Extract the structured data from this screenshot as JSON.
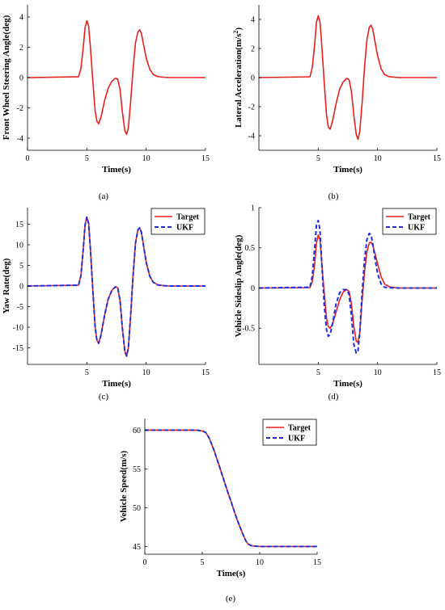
{
  "chart_data": [
    {
      "id": "a",
      "type": "line",
      "caption": "(a)",
      "title": "",
      "xlabel": "Time(s)",
      "ylabel": "Front Wheel Steering Angle(deg)",
      "xlim": [
        0,
        15
      ],
      "ylim": [
        -4.8,
        4.8
      ],
      "xticks": [
        0,
        5,
        10,
        15
      ],
      "yticks": [
        -4,
        -2,
        0,
        2,
        4
      ],
      "legend": null,
      "series": [
        {
          "color": "#e8201c",
          "dash": "solid",
          "x": [
            0,
            4.3,
            4.5,
            4.7,
            4.85,
            5.0,
            5.15,
            5.3,
            5.5,
            5.7,
            5.85,
            6.0,
            6.2,
            6.5,
            6.8,
            7.1,
            7.4,
            7.6,
            7.8,
            8.0,
            8.2,
            8.35,
            8.5,
            8.7,
            8.9,
            9.1,
            9.3,
            9.45,
            9.6,
            9.8,
            10.0,
            10.3,
            10.6,
            11.0,
            11.5,
            12.0,
            15
          ],
          "y": [
            0,
            0.05,
            0.6,
            2.0,
            3.3,
            3.75,
            3.4,
            2.0,
            -0.2,
            -2.2,
            -2.9,
            -3.05,
            -2.6,
            -1.5,
            -0.7,
            -0.25,
            -0.05,
            -0.1,
            -0.8,
            -2.3,
            -3.5,
            -3.75,
            -3.3,
            -1.5,
            0.6,
            2.3,
            3.0,
            3.15,
            2.9,
            2.1,
            1.3,
            0.55,
            0.2,
            0.06,
            0.02,
            0,
            0
          ]
        }
      ]
    },
    {
      "id": "b",
      "type": "line",
      "caption": "(b)",
      "title": "",
      "xlabel": "Time(s)",
      "ylabel": "Lateral Acceleration(m/s",
      "ylabel_sup": "2",
      "ylabel_end": ")",
      "xlim": [
        0,
        15
      ],
      "ylim": [
        -5,
        5
      ],
      "xticks": [
        5,
        10,
        15
      ],
      "yticks": [
        -4,
        -2,
        0,
        2,
        4
      ],
      "legend": null,
      "series": [
        {
          "color": "#e8201c",
          "dash": "solid",
          "x": [
            0,
            4.3,
            4.5,
            4.7,
            4.85,
            5.0,
            5.15,
            5.3,
            5.5,
            5.7,
            5.85,
            6.0,
            6.2,
            6.5,
            6.8,
            7.1,
            7.4,
            7.6,
            7.8,
            8.0,
            8.2,
            8.35,
            8.5,
            8.7,
            8.9,
            9.1,
            9.3,
            9.45,
            9.6,
            9.8,
            10.0,
            10.3,
            10.6,
            11.0,
            11.5,
            12.0,
            15
          ],
          "y": [
            0,
            0.05,
            0.7,
            2.3,
            3.8,
            4.25,
            3.8,
            2.2,
            -0.3,
            -2.6,
            -3.4,
            -3.55,
            -3.0,
            -1.8,
            -0.8,
            -0.3,
            -0.05,
            -0.15,
            -1.0,
            -2.6,
            -3.9,
            -4.25,
            -3.7,
            -1.7,
            0.7,
            2.6,
            3.45,
            3.6,
            3.3,
            2.4,
            1.5,
            0.6,
            0.2,
            0.06,
            0.02,
            0,
            0
          ]
        }
      ]
    },
    {
      "id": "c",
      "type": "line",
      "caption": "(c)",
      "title": "",
      "xlabel": "Time(s)",
      "ylabel": "Yaw Rate(deg)",
      "xlim": [
        0,
        15
      ],
      "ylim": [
        -19,
        19
      ],
      "xticks": [
        5,
        10,
        15
      ],
      "yticks": [
        -15,
        -10,
        -5,
        0,
        5,
        10,
        15
      ],
      "legend": [
        "Target",
        "UKF"
      ],
      "series": [
        {
          "name": "Target",
          "color": "#e8201c",
          "dash": "solid",
          "x": [
            0,
            4.3,
            4.5,
            4.7,
            4.85,
            5.0,
            5.15,
            5.3,
            5.5,
            5.7,
            5.85,
            6.0,
            6.2,
            6.5,
            6.8,
            7.1,
            7.4,
            7.6,
            7.8,
            8.0,
            8.2,
            8.35,
            8.5,
            8.7,
            8.9,
            9.1,
            9.3,
            9.45,
            9.6,
            9.8,
            10.0,
            10.3,
            10.6,
            11.0,
            11.5,
            12.0,
            15
          ],
          "y": [
            0,
            0.2,
            2.5,
            9.0,
            14.8,
            16.7,
            15.2,
            9.0,
            -0.8,
            -10.0,
            -13.2,
            -13.9,
            -11.8,
            -7.0,
            -3.2,
            -1.1,
            -0.2,
            -0.4,
            -3.6,
            -10.4,
            -15.8,
            -17.0,
            -15.0,
            -6.8,
            2.7,
            10.4,
            13.6,
            14.1,
            13.0,
            9.4,
            5.8,
            2.4,
            0.9,
            0.25,
            0.08,
            0,
            0
          ]
        },
        {
          "name": "UKF",
          "color": "#1f2de0",
          "dash": "dashed",
          "x": [
            0,
            4.3,
            4.5,
            4.7,
            4.85,
            5.0,
            5.15,
            5.3,
            5.5,
            5.7,
            5.85,
            6.0,
            6.2,
            6.5,
            6.8,
            7.1,
            7.4,
            7.6,
            7.8,
            8.0,
            8.2,
            8.35,
            8.5,
            8.7,
            8.9,
            9.1,
            9.3,
            9.45,
            9.6,
            9.8,
            10.0,
            10.3,
            10.6,
            11.0,
            11.5,
            12.0,
            15
          ],
          "y": [
            0,
            0.2,
            2.5,
            9.0,
            14.8,
            16.7,
            15.2,
            9.0,
            -0.8,
            -10.0,
            -13.2,
            -13.9,
            -11.8,
            -7.0,
            -3.2,
            -1.1,
            -0.2,
            -0.4,
            -3.6,
            -10.4,
            -15.8,
            -17.0,
            -15.0,
            -6.8,
            2.7,
            10.4,
            13.6,
            14.1,
            13.0,
            9.4,
            5.8,
            2.4,
            0.9,
            0.25,
            0.08,
            0,
            0
          ]
        }
      ]
    },
    {
      "id": "d",
      "type": "line",
      "caption": "(d)",
      "title": "",
      "xlabel": "Time(s)",
      "ylabel": "Vehicle Sideslip Angle(deg)",
      "xlim": [
        0,
        15
      ],
      "ylim": [
        -0.95,
        1.0
      ],
      "xticks": [
        5,
        10,
        15
      ],
      "yticks": [
        -0.5,
        0,
        0.5,
        1
      ],
      "legend": [
        "Target",
        "UKF"
      ],
      "series": [
        {
          "name": "Target",
          "color": "#e8201c",
          "dash": "solid",
          "x": [
            0,
            4.3,
            4.5,
            4.7,
            4.85,
            5.0,
            5.15,
            5.3,
            5.5,
            5.7,
            5.85,
            6.0,
            6.2,
            6.5,
            6.8,
            7.1,
            7.4,
            7.6,
            7.8,
            8.0,
            8.2,
            8.35,
            8.5,
            8.7,
            8.9,
            9.1,
            9.3,
            9.45,
            9.6,
            9.8,
            10.0,
            10.3,
            10.6,
            11.0,
            11.5,
            12.0,
            15
          ],
          "y": [
            0,
            0.005,
            0.08,
            0.3,
            0.56,
            0.66,
            0.6,
            0.3,
            -0.05,
            -0.38,
            -0.48,
            -0.5,
            -0.45,
            -0.3,
            -0.15,
            -0.05,
            -0.02,
            -0.04,
            -0.2,
            -0.48,
            -0.66,
            -0.68,
            -0.55,
            -0.15,
            0.2,
            0.45,
            0.56,
            0.57,
            0.53,
            0.42,
            0.3,
            0.14,
            0.05,
            0.015,
            0.005,
            0,
            0
          ]
        },
        {
          "name": "UKF",
          "color": "#1f2de0",
          "dash": "dashed",
          "x": [
            0,
            4.3,
            4.5,
            4.7,
            4.85,
            5.0,
            5.15,
            5.3,
            5.5,
            5.7,
            5.85,
            6.0,
            6.2,
            6.5,
            6.8,
            7.1,
            7.4,
            7.6,
            7.8,
            8.0,
            8.2,
            8.35,
            8.5,
            8.7,
            8.9,
            9.1,
            9.3,
            9.45,
            9.6,
            9.8,
            10.0,
            10.3,
            10.6,
            11.0,
            11.5,
            12.0,
            15
          ],
          "y": [
            0,
            0.01,
            0.15,
            0.5,
            0.78,
            0.84,
            0.72,
            0.3,
            -0.2,
            -0.52,
            -0.6,
            -0.58,
            -0.45,
            -0.2,
            -0.06,
            -0.02,
            -0.02,
            -0.08,
            -0.35,
            -0.7,
            -0.81,
            -0.78,
            -0.55,
            -0.05,
            0.35,
            0.6,
            0.68,
            0.66,
            0.55,
            0.35,
            0.18,
            0.05,
            0.01,
            0.003,
            0.001,
            0,
            0
          ]
        }
      ]
    },
    {
      "id": "e",
      "type": "line",
      "caption": "(e)",
      "title": "",
      "xlabel": "Time(s)",
      "ylabel": "Vehicle Speed(m/s)",
      "xlim": [
        0,
        15
      ],
      "ylim": [
        44,
        61.5
      ],
      "xticks": [
        0,
        5,
        10,
        15
      ],
      "yticks": [
        45,
        50,
        55,
        60
      ],
      "legend": [
        "Target",
        "UKF"
      ],
      "series": [
        {
          "name": "Target",
          "color": "#e8201c",
          "dash": "solid",
          "x": [
            0,
            4.5,
            5.0,
            5.3,
            5.6,
            6.0,
            6.5,
            7.0,
            7.5,
            8.0,
            8.5,
            8.8,
            9.0,
            9.3,
            9.6,
            10.0,
            11.0,
            15
          ],
          "y": [
            60,
            60,
            59.9,
            59.7,
            59.0,
            57.5,
            55.3,
            53.0,
            50.8,
            48.6,
            46.7,
            45.7,
            45.3,
            45.1,
            45.05,
            45.0,
            45.0,
            45.0
          ]
        },
        {
          "name": "UKF",
          "color": "#1f2de0",
          "dash": "dashed",
          "x": [
            0,
            4.5,
            5.0,
            5.3,
            5.6,
            6.0,
            6.5,
            7.0,
            7.5,
            8.0,
            8.5,
            8.8,
            9.0,
            9.3,
            9.6,
            10.0,
            11.0,
            15
          ],
          "y": [
            60,
            60,
            59.9,
            59.7,
            59.0,
            57.5,
            55.3,
            53.0,
            50.8,
            48.6,
            46.7,
            45.7,
            45.3,
            45.1,
            45.05,
            45.0,
            45.0,
            45.0
          ]
        }
      ]
    }
  ]
}
